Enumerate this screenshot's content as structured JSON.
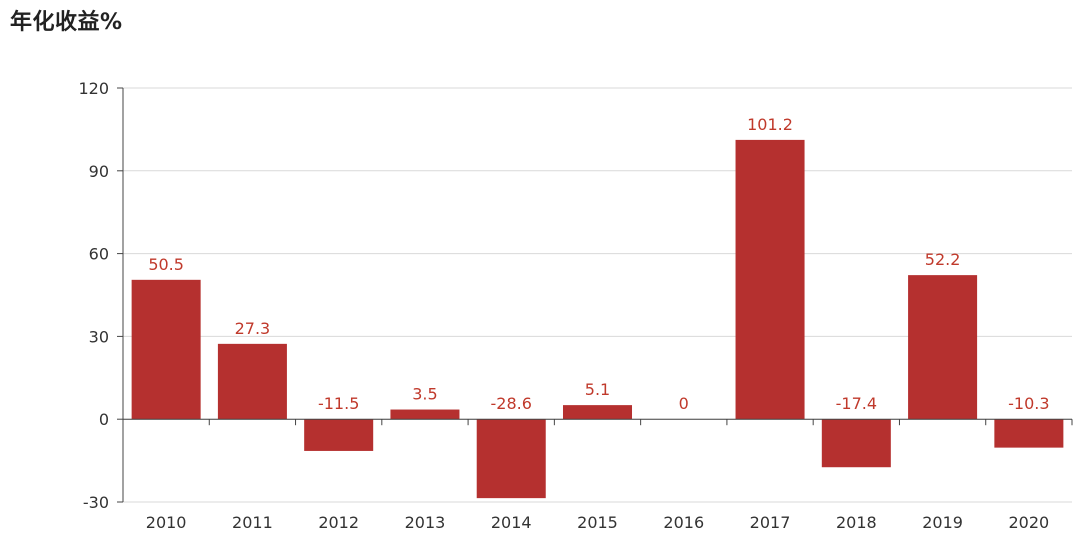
{
  "chart_data": {
    "type": "bar",
    "title": "年化收益%",
    "xlabel": "",
    "ylabel": "",
    "categories": [
      "2010",
      "2011",
      "2012",
      "2013",
      "2014",
      "2015",
      "2016",
      "2017",
      "2018",
      "2019",
      "2020"
    ],
    "values": [
      50.5,
      27.3,
      -11.5,
      3.5,
      -28.6,
      5.1,
      0,
      101.2,
      -17.4,
      52.2,
      -10.3
    ],
    "value_labels": [
      "50.5",
      "27.3",
      "-11.5",
      "3.5",
      "-28.6",
      "5.1",
      "0",
      "101.2",
      "-17.4",
      "52.2",
      "-10.3"
    ],
    "ylim": [
      -30,
      120
    ],
    "yticks": [
      "-30",
      "0",
      "30",
      "60",
      "90",
      "120"
    ],
    "grid": true,
    "legend": "none",
    "colors": {
      "bar": "#b5302f",
      "label": "#c0392b",
      "grid": "#d9d9d9",
      "axis": "#444444"
    }
  }
}
